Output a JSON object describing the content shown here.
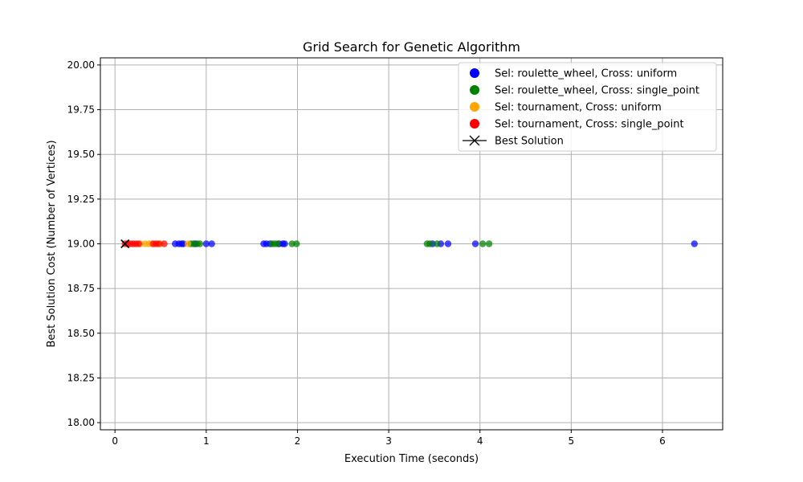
{
  "chart_data": {
    "type": "scatter",
    "title": "Grid Search for Genetic Algorithm",
    "xlabel": "Execution Time (seconds)",
    "ylabel": "Best Solution Cost (Number of Vertices)",
    "xlim": [
      -0.16,
      6.66
    ],
    "ylim": [
      17.96,
      20.04
    ],
    "xticks": [
      0,
      1,
      2,
      3,
      4,
      5,
      6
    ],
    "yticks": [
      18.0,
      18.25,
      18.5,
      18.75,
      19.0,
      19.25,
      19.5,
      19.75,
      20.0
    ],
    "ytick_labels": [
      "18.00",
      "18.25",
      "18.50",
      "18.75",
      "19.00",
      "19.25",
      "19.50",
      "19.75",
      "20.00"
    ],
    "grid": true,
    "legend_position": "top-right",
    "series": [
      {
        "name": "Sel: roulette_wheel, Cross: uniform",
        "color": "#0000ff",
        "x": [
          0.66,
          0.7,
          0.73,
          0.75,
          0.88,
          1.0,
          1.06,
          1.63,
          1.66,
          1.7,
          1.8,
          1.84,
          1.86,
          3.48,
          3.57,
          3.65,
          3.95,
          6.35
        ],
        "y": [
          19,
          19,
          19,
          19,
          19,
          19,
          19,
          19,
          19,
          19,
          19,
          19,
          19,
          19,
          19,
          19,
          19,
          19
        ]
      },
      {
        "name": "Sel: roulette_wheel, Cross: single_point",
        "color": "#008000",
        "x": [
          0.83,
          0.86,
          0.9,
          0.93,
          1.72,
          1.75,
          1.78,
          1.94,
          1.99,
          3.42,
          3.45,
          3.53,
          4.03,
          4.1
        ],
        "y": [
          19,
          19,
          19,
          19,
          19,
          19,
          19,
          19,
          19,
          19,
          19,
          19,
          19,
          19
        ]
      },
      {
        "name": "Sel: tournament, Cross: uniform",
        "color": "#ffa500",
        "x": [
          0.28,
          0.33,
          0.37,
          0.4,
          0.5,
          0.8
        ],
        "y": [
          19,
          19,
          19,
          19,
          19,
          19
        ]
      },
      {
        "name": "Sel: tournament, Cross: single_point",
        "color": "#ff0000",
        "x": [
          0.11,
          0.14,
          0.17,
          0.2,
          0.23,
          0.26,
          0.42,
          0.45,
          0.48,
          0.54
        ],
        "y": [
          19,
          19,
          19,
          19,
          19,
          19,
          19,
          19,
          19,
          19
        ]
      }
    ],
    "best_solution": {
      "name": "Best Solution",
      "color": "#000000",
      "marker": "x",
      "x": 0.11,
      "y": 19
    }
  }
}
